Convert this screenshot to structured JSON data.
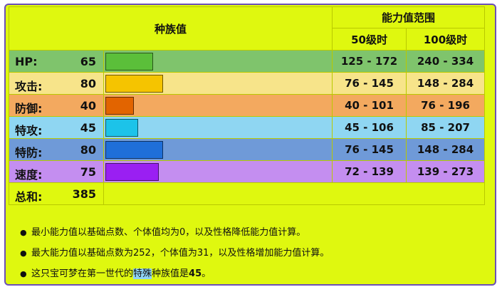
{
  "header": {
    "base_stats": "种族值",
    "range_title": "能力值范围",
    "lv50": "50级时",
    "lv100": "100级时"
  },
  "stats": [
    {
      "label": "HP:",
      "value": "65",
      "lv50": "125 - 172",
      "lv100": "240 - 334",
      "row_color": "#7fc46c",
      "bar_color": "#5bbf3a",
      "fill_percent": 38
    },
    {
      "label": "攻击:",
      "value": "80",
      "lv50": "76 - 145",
      "lv100": "148 - 284",
      "row_color": "#f7e48a",
      "bar_color": "#f5c400",
      "fill_percent": 46
    },
    {
      "label": "防御:",
      "value": "40",
      "lv50": "40 - 101",
      "lv100": "76 - 196",
      "row_color": "#f3a95f",
      "bar_color": "#e26400",
      "fill_percent": 23
    },
    {
      "label": "特攻:",
      "value": "45",
      "lv50": "45 - 106",
      "lv100": "85 - 207",
      "row_color": "#8fd6f2",
      "bar_color": "#1cc3e9",
      "fill_percent": 26
    },
    {
      "label": "特防:",
      "value": "80",
      "lv50": "76 - 145",
      "lv100": "148 - 284",
      "row_color": "#6f9ad8",
      "bar_color": "#1f6fd9",
      "fill_percent": 46
    },
    {
      "label": "速度:",
      "value": "75",
      "lv50": "72 - 139",
      "lv100": "139 - 273",
      "row_color": "#c48ef0",
      "bar_color": "#9a1ff2",
      "fill_percent": 43
    }
  ],
  "total": {
    "label": "总和:",
    "value": "385"
  },
  "notes": {
    "n1": "最小能力值以基础点数、个体值均为0，以及性格降低能力值计算。",
    "n2": "最大能力值以基础点数为252，个体值为31，以及性格增加能力值计算。",
    "n3_pre": "这只宝可梦在第一世代的",
    "n3_hl": "特殊",
    "n3_mid": "种族值是",
    "n3_val": "45",
    "n3_end": "。"
  },
  "colors": {
    "background": "#dff80f",
    "border": "#6b4fb8"
  }
}
